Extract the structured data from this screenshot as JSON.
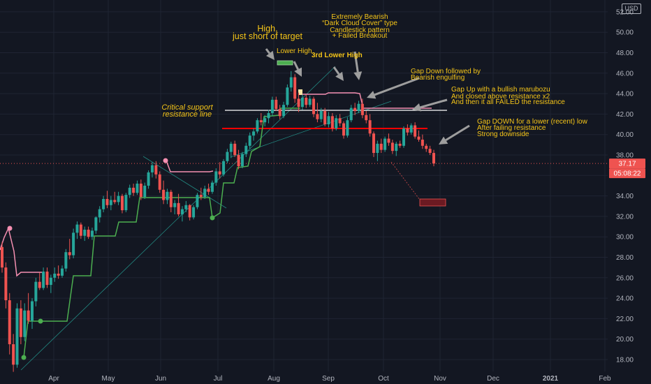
{
  "chart_data": {
    "type": "candlestick",
    "currency": "USD",
    "ylim": [
      16.5,
      52
    ],
    "y_ticks": [
      "52.00",
      "50.00",
      "48.00",
      "46.00",
      "44.00",
      "42.00",
      "40.00",
      "38.00",
      "36.00",
      "34.00",
      "32.00",
      "30.00",
      "28.00",
      "26.00",
      "24.00",
      "22.00",
      "20.00",
      "18.00"
    ],
    "x_ticks": [
      "Apr",
      "May",
      "Jun",
      "Jul",
      "Aug",
      "Sep",
      "Oct",
      "Nov",
      "Dec",
      "2021",
      "Feb"
    ],
    "last_price": "37.17",
    "countdown": "05:08:22",
    "grid": true,
    "colors": {
      "up": "#26a69a",
      "down": "#ef5350",
      "background": "#131722",
      "support_line": "#ff0000",
      "resistance_line": "#ffffff",
      "annotation": "#f5c518",
      "trend_green": "#4caf50",
      "trend_pink": "#f48fb1"
    },
    "candles": [
      {
        "o": 29.0,
        "h": 29.5,
        "l": 26.5,
        "c": 27.0
      },
      {
        "o": 27.0,
        "h": 27.5,
        "l": 23.0,
        "c": 23.8
      },
      {
        "o": 23.8,
        "h": 24.5,
        "l": 18.5,
        "c": 19.5
      },
      {
        "o": 19.5,
        "h": 20.5,
        "l": 16.8,
        "c": 17.5
      },
      {
        "o": 17.5,
        "h": 23.5,
        "l": 17.2,
        "c": 23.0
      },
      {
        "o": 23.0,
        "h": 23.8,
        "l": 19.5,
        "c": 20.2
      },
      {
        "o": 20.2,
        "h": 23.5,
        "l": 19.8,
        "c": 22.8
      },
      {
        "o": 22.8,
        "h": 24.5,
        "l": 21.5,
        "c": 21.8
      },
      {
        "o": 21.8,
        "h": 24.0,
        "l": 21.0,
        "c": 23.7
      },
      {
        "o": 23.7,
        "h": 26.0,
        "l": 23.2,
        "c": 25.6
      },
      {
        "o": 25.6,
        "h": 26.5,
        "l": 24.8,
        "c": 25.0
      },
      {
        "o": 25.0,
        "h": 27.0,
        "l": 24.8,
        "c": 26.6
      },
      {
        "o": 26.6,
        "h": 27.0,
        "l": 25.0,
        "c": 25.3
      },
      {
        "o": 25.3,
        "h": 26.3,
        "l": 24.5,
        "c": 26.0
      },
      {
        "o": 26.0,
        "h": 27.0,
        "l": 25.6,
        "c": 26.4
      },
      {
        "o": 26.4,
        "h": 27.2,
        "l": 25.9,
        "c": 26.2
      },
      {
        "o": 26.2,
        "h": 27.2,
        "l": 26.0,
        "c": 26.9
      },
      {
        "o": 26.9,
        "h": 28.8,
        "l": 26.6,
        "c": 28.5
      },
      {
        "o": 28.5,
        "h": 29.8,
        "l": 27.8,
        "c": 28.2
      },
      {
        "o": 28.2,
        "h": 30.8,
        "l": 27.9,
        "c": 30.4
      },
      {
        "o": 30.4,
        "h": 31.5,
        "l": 29.8,
        "c": 31.2
      },
      {
        "o": 31.2,
        "h": 31.4,
        "l": 29.8,
        "c": 30.1
      },
      {
        "o": 30.1,
        "h": 31.0,
        "l": 29.6,
        "c": 30.7
      },
      {
        "o": 30.7,
        "h": 31.0,
        "l": 29.8,
        "c": 30.0
      },
      {
        "o": 30.0,
        "h": 30.9,
        "l": 29.7,
        "c": 30.6
      },
      {
        "o": 30.6,
        "h": 32.0,
        "l": 30.3,
        "c": 31.9
      },
      {
        "o": 31.9,
        "h": 33.0,
        "l": 31.4,
        "c": 32.7
      },
      {
        "o": 32.7,
        "h": 34.0,
        "l": 32.4,
        "c": 33.7
      },
      {
        "o": 33.7,
        "h": 34.5,
        "l": 32.8,
        "c": 33.1
      },
      {
        "o": 33.1,
        "h": 34.0,
        "l": 32.6,
        "c": 33.6
      },
      {
        "o": 33.6,
        "h": 34.4,
        "l": 33.2,
        "c": 33.4
      },
      {
        "o": 33.4,
        "h": 34.4,
        "l": 33.1,
        "c": 34.0
      },
      {
        "o": 34.0,
        "h": 34.2,
        "l": 32.3,
        "c": 32.6
      },
      {
        "o": 32.6,
        "h": 34.3,
        "l": 32.4,
        "c": 34.1
      },
      {
        "o": 34.1,
        "h": 35.1,
        "l": 33.8,
        "c": 34.8
      },
      {
        "o": 34.8,
        "h": 35.2,
        "l": 34.0,
        "c": 34.3
      },
      {
        "o": 34.3,
        "h": 35.5,
        "l": 34.1,
        "c": 35.2
      },
      {
        "o": 35.2,
        "h": 35.6,
        "l": 33.6,
        "c": 33.9
      },
      {
        "o": 33.9,
        "h": 35.3,
        "l": 33.7,
        "c": 35.0
      },
      {
        "o": 35.0,
        "h": 36.5,
        "l": 34.7,
        "c": 36.3
      },
      {
        "o": 36.3,
        "h": 37.3,
        "l": 35.8,
        "c": 37.0
      },
      {
        "o": 37.0,
        "h": 37.4,
        "l": 35.7,
        "c": 36.1
      },
      {
        "o": 36.1,
        "h": 36.4,
        "l": 34.3,
        "c": 34.6
      },
      {
        "o": 34.6,
        "h": 35.5,
        "l": 33.2,
        "c": 33.6
      },
      {
        "o": 33.6,
        "h": 34.7,
        "l": 33.2,
        "c": 34.4
      },
      {
        "o": 34.4,
        "h": 34.6,
        "l": 32.4,
        "c": 32.9
      },
      {
        "o": 32.9,
        "h": 33.6,
        "l": 32.2,
        "c": 33.3
      },
      {
        "o": 33.3,
        "h": 34.2,
        "l": 32.0,
        "c": 32.2
      },
      {
        "o": 32.2,
        "h": 33.0,
        "l": 31.5,
        "c": 32.7
      },
      {
        "o": 32.7,
        "h": 33.5,
        "l": 32.4,
        "c": 33.1
      },
      {
        "o": 33.1,
        "h": 33.2,
        "l": 31.6,
        "c": 31.9
      },
      {
        "o": 31.9,
        "h": 33.1,
        "l": 31.7,
        "c": 32.9
      },
      {
        "o": 32.9,
        "h": 34.3,
        "l": 32.7,
        "c": 34.1
      },
      {
        "o": 34.1,
        "h": 34.8,
        "l": 33.6,
        "c": 33.9
      },
      {
        "o": 33.9,
        "h": 35.0,
        "l": 33.7,
        "c": 34.7
      },
      {
        "o": 34.7,
        "h": 35.2,
        "l": 34.1,
        "c": 34.4
      },
      {
        "o": 34.4,
        "h": 35.5,
        "l": 34.2,
        "c": 35.3
      },
      {
        "o": 35.3,
        "h": 36.7,
        "l": 35.0,
        "c": 36.4
      },
      {
        "o": 36.4,
        "h": 37.3,
        "l": 35.7,
        "c": 36.1
      },
      {
        "o": 36.1,
        "h": 37.6,
        "l": 35.9,
        "c": 37.4
      },
      {
        "o": 37.4,
        "h": 38.6,
        "l": 37.2,
        "c": 38.3
      },
      {
        "o": 38.3,
        "h": 39.3,
        "l": 37.7,
        "c": 39.1
      },
      {
        "o": 39.1,
        "h": 39.4,
        "l": 37.8,
        "c": 38.0
      },
      {
        "o": 38.0,
        "h": 38.5,
        "l": 36.6,
        "c": 36.9
      },
      {
        "o": 36.9,
        "h": 38.3,
        "l": 36.7,
        "c": 38.1
      },
      {
        "o": 38.1,
        "h": 39.2,
        "l": 37.8,
        "c": 38.9
      },
      {
        "o": 38.9,
        "h": 40.2,
        "l": 38.6,
        "c": 39.9
      },
      {
        "o": 39.9,
        "h": 40.6,
        "l": 39.4,
        "c": 40.3
      },
      {
        "o": 40.3,
        "h": 41.6,
        "l": 40.1,
        "c": 41.4
      },
      {
        "o": 41.4,
        "h": 42.1,
        "l": 40.9,
        "c": 41.2
      },
      {
        "o": 41.2,
        "h": 41.9,
        "l": 40.8,
        "c": 41.6
      },
      {
        "o": 41.6,
        "h": 42.4,
        "l": 41.1,
        "c": 42.1
      },
      {
        "o": 42.1,
        "h": 43.7,
        "l": 41.8,
        "c": 43.4
      },
      {
        "o": 43.4,
        "h": 43.7,
        "l": 42.3,
        "c": 42.5
      },
      {
        "o": 42.5,
        "h": 42.9,
        "l": 41.5,
        "c": 41.8
      },
      {
        "o": 41.8,
        "h": 43.2,
        "l": 41.6,
        "c": 42.9
      },
      {
        "o": 42.9,
        "h": 44.9,
        "l": 42.7,
        "c": 44.6
      },
      {
        "o": 44.6,
        "h": 46.2,
        "l": 44.2,
        "c": 45.6
      },
      {
        "o": 45.6,
        "h": 45.9,
        "l": 43.1,
        "c": 43.5
      },
      {
        "o": 43.5,
        "h": 44.1,
        "l": 42.2,
        "c": 42.7
      },
      {
        "o": 42.7,
        "h": 43.9,
        "l": 42.4,
        "c": 43.6
      },
      {
        "o": 43.6,
        "h": 43.9,
        "l": 42.6,
        "c": 42.9
      },
      {
        "o": 42.9,
        "h": 43.8,
        "l": 42.7,
        "c": 43.5
      },
      {
        "o": 43.5,
        "h": 43.7,
        "l": 41.7,
        "c": 42.0
      },
      {
        "o": 42.0,
        "h": 43.1,
        "l": 41.2,
        "c": 41.5
      },
      {
        "o": 41.5,
        "h": 42.6,
        "l": 41.2,
        "c": 42.3
      },
      {
        "o": 42.3,
        "h": 42.6,
        "l": 40.8,
        "c": 41.0
      },
      {
        "o": 41.0,
        "h": 42.2,
        "l": 40.7,
        "c": 41.8
      },
      {
        "o": 41.8,
        "h": 42.1,
        "l": 40.3,
        "c": 40.6
      },
      {
        "o": 40.6,
        "h": 41.9,
        "l": 40.4,
        "c": 41.6
      },
      {
        "o": 41.6,
        "h": 42.0,
        "l": 40.8,
        "c": 41.1
      },
      {
        "o": 41.1,
        "h": 41.3,
        "l": 39.6,
        "c": 39.9
      },
      {
        "o": 39.9,
        "h": 41.7,
        "l": 39.7,
        "c": 41.4
      },
      {
        "o": 41.4,
        "h": 42.9,
        "l": 41.2,
        "c": 42.6
      },
      {
        "o": 42.6,
        "h": 43.1,
        "l": 41.9,
        "c": 42.3
      },
      {
        "o": 42.3,
        "h": 43.3,
        "l": 42.1,
        "c": 43.0
      },
      {
        "o": 43.0,
        "h": 43.5,
        "l": 41.6,
        "c": 41.9
      },
      {
        "o": 41.9,
        "h": 42.3,
        "l": 41.1,
        "c": 41.4
      },
      {
        "o": 41.4,
        "h": 42.0,
        "l": 39.8,
        "c": 40.1
      },
      {
        "o": 40.1,
        "h": 40.3,
        "l": 37.8,
        "c": 38.2
      },
      {
        "o": 38.2,
        "h": 39.4,
        "l": 37.4,
        "c": 39.1
      },
      {
        "o": 39.1,
        "h": 39.6,
        "l": 38.2,
        "c": 38.5
      },
      {
        "o": 38.5,
        "h": 39.8,
        "l": 38.3,
        "c": 39.6
      },
      {
        "o": 39.6,
        "h": 40.1,
        "l": 38.9,
        "c": 39.2
      },
      {
        "o": 39.2,
        "h": 39.5,
        "l": 38.1,
        "c": 38.4
      },
      {
        "o": 38.4,
        "h": 39.3,
        "l": 37.9,
        "c": 39.1
      },
      {
        "o": 39.1,
        "h": 39.4,
        "l": 38.7,
        "c": 38.9
      },
      {
        "o": 38.9,
        "h": 40.8,
        "l": 38.7,
        "c": 40.6
      },
      {
        "o": 40.6,
        "h": 41.0,
        "l": 39.9,
        "c": 40.2
      },
      {
        "o": 40.2,
        "h": 41.1,
        "l": 40.0,
        "c": 40.9
      },
      {
        "o": 40.9,
        "h": 41.2,
        "l": 39.6,
        "c": 39.8
      },
      {
        "o": 39.8,
        "h": 40.4,
        "l": 39.3,
        "c": 39.5
      },
      {
        "o": 39.5,
        "h": 40.0,
        "l": 38.6,
        "c": 38.9
      },
      {
        "o": 38.9,
        "h": 39.1,
        "l": 38.3,
        "c": 38.6
      },
      {
        "o": 38.6,
        "h": 38.9,
        "l": 38.0,
        "c": 38.2
      },
      {
        "o": 38.2,
        "h": 38.5,
        "l": 36.9,
        "c": 37.17
      }
    ],
    "annotations": [
      {
        "text": "High,",
        "size": "big"
      },
      {
        "text": "just short of target",
        "size": "big"
      },
      {
        "text": "Lower High",
        "size": "normal"
      },
      {
        "text": "3rd Lower High",
        "size": "bold"
      },
      {
        "text": "Extremely Bearish",
        "size": "normal"
      },
      {
        "text": "“Dark Cloud Cover” type",
        "size": "normal"
      },
      {
        "text": "Candlestick pattern",
        "size": "normal"
      },
      {
        "text": "+ Failed Breakout",
        "size": "normal"
      },
      {
        "text": "Gap Down followed by",
        "size": "normal"
      },
      {
        "text": "Bearish engulfing",
        "size": "normal"
      },
      {
        "text": "Gap Up with a bullish marubozu",
        "size": "normal"
      },
      {
        "text": "And closed above resistance x2",
        "size": "normal"
      },
      {
        "text": "And then it all FAILED the resistance",
        "size": "normal"
      },
      {
        "text": "Critical support",
        "size": "italic"
      },
      {
        "text": "resistance line",
        "size": "italic"
      },
      {
        "text": "Gap DOWN for a lower (recent) low",
        "size": "normal"
      },
      {
        "text": "After failing resistance",
        "size": "normal"
      },
      {
        "text": "Strong downside",
        "size": "normal"
      }
    ]
  }
}
